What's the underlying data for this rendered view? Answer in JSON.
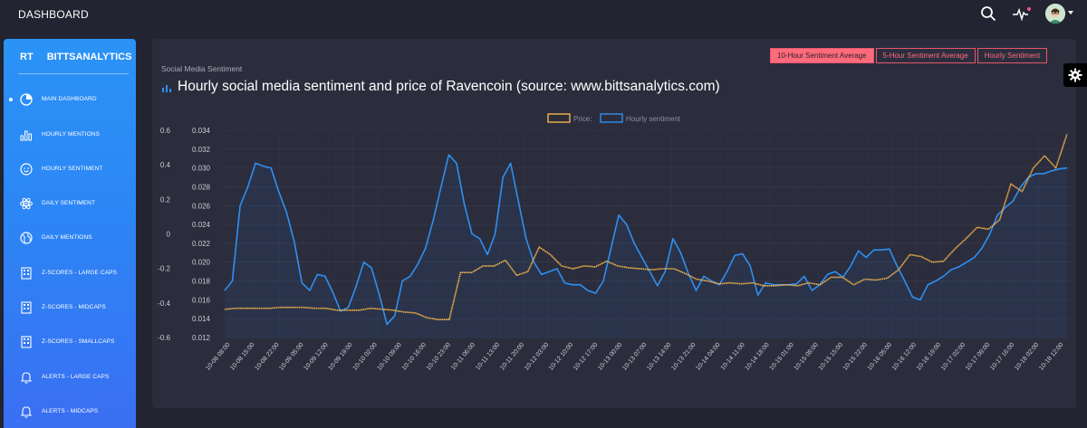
{
  "topbar": {
    "title": "DASHBOARD"
  },
  "sidebar": {
    "brand_short": "RT",
    "brand_name": "BITTSANALYTICS",
    "items": [
      {
        "label": "MAIN DASHBOARD",
        "icon": "pie-chart-icon",
        "active": true
      },
      {
        "label": "HOURLY MENTIONS",
        "icon": "bar-chart-icon"
      },
      {
        "label": "HOURLY SENTIMENT",
        "icon": "smiley-icon"
      },
      {
        "label": "DAILY SENTIMENT",
        "icon": "atom-icon"
      },
      {
        "label": "DAILY MENTIONS",
        "icon": "globe-icon"
      },
      {
        "label": "Z-SCORES - LARGE CAPS",
        "icon": "building-icon"
      },
      {
        "label": "Z-SCORES - MIDCAPS",
        "icon": "building-icon"
      },
      {
        "label": "Z-SCORES - SMALLCAPS",
        "icon": "building-icon"
      },
      {
        "label": "ALERTS - LARGE CAPS",
        "icon": "bell-icon"
      },
      {
        "label": "ALERTS - MIDCAPS",
        "icon": "bell-icon"
      }
    ]
  },
  "panel": {
    "subtitle": "Social Media Sentiment",
    "title": "Hourly social media sentiment and price of Ravencoin (source: www.bittsanalytics.com)",
    "tabs": [
      {
        "label": "10-Hour Sentiment Average",
        "active": true
      },
      {
        "label": "5-Hour Sentiment Average",
        "active": false
      },
      {
        "label": "Hourly Sentiment",
        "active": false
      }
    ]
  },
  "colors": {
    "price": "#f5b44a",
    "sentiment": "#2f8ff0",
    "accent": "#ff6b7d",
    "sidebar": "#2b8ff5"
  },
  "chart_data": {
    "type": "line",
    "legend": [
      "Price:",
      "Hourly sentiment"
    ],
    "legend_position": "top-center",
    "grid": true,
    "x_ticks": [
      "10-08 08:00",
      "10-08 15:00",
      "10-08 22:00",
      "10-09 05:00",
      "10-09 12:00",
      "10-09 19:00",
      "10-10 02:00",
      "10-10 09:00",
      "10-10 16:00",
      "10-10 23:00",
      "10-11 06:00",
      "10-11 13:00",
      "10-11 20:00",
      "10-12 03:00",
      "10-12 10:00",
      "10-12 17:00",
      "10-13 00:00",
      "10-13 07:00",
      "10-13 14:00",
      "10-13 21:00",
      "10-14 04:00",
      "10-14 11:00",
      "10-14 18:00",
      "10-15 01:00",
      "10-15 08:00",
      "10-15 15:00",
      "10-15 22:00",
      "10-16 05:00",
      "10-16 12:00",
      "10-16 19:00",
      "10-17 02:00",
      "10-17 09:00",
      "10-17 16:00",
      "10-18 02:00",
      "10-18 12:00"
    ],
    "y_left": {
      "ticks": [
        "0.6",
        "0.4",
        "0.2",
        "0",
        "-0.2",
        "-0.4",
        "-0.6"
      ],
      "range": [
        -0.6,
        0.6
      ]
    },
    "y_right": {
      "ticks": [
        "0.034",
        "0.032",
        "0.030",
        "0.028",
        "0.026",
        "0.024",
        "0.022",
        "0.020",
        "0.018",
        "0.016",
        "0.014",
        "0.012"
      ],
      "range": [
        0.012,
        0.034
      ]
    },
    "series": [
      {
        "name": "Price:",
        "axis": "right",
        "values": [
          0.015,
          0.0151,
          0.0151,
          0.0151,
          0.0151,
          0.0152,
          0.0152,
          0.0152,
          0.0151,
          0.0151,
          0.0149,
          0.0149,
          0.0149,
          0.0151,
          0.015,
          0.0149,
          0.0147,
          0.0146,
          0.0141,
          0.0139,
          0.0139,
          0.0189,
          0.0189,
          0.0196,
          0.0196,
          0.0202,
          0.0186,
          0.019,
          0.0216,
          0.0208,
          0.0196,
          0.0193,
          0.0196,
          0.0195,
          0.0201,
          0.0196,
          0.0194,
          0.0193,
          0.0192,
          0.0193,
          0.0193,
          0.0188,
          0.0182,
          0.018,
          0.0177,
          0.0178,
          0.0177,
          0.0178,
          0.0175,
          0.0175,
          0.0176,
          0.0175,
          0.0178,
          0.0176,
          0.0184,
          0.0184,
          0.0176,
          0.0182,
          0.0181,
          0.0183,
          0.0192,
          0.0208,
          0.0206,
          0.02,
          0.0201,
          0.0214,
          0.0225,
          0.0237,
          0.0235,
          0.0245,
          0.0283,
          0.0275,
          0.03,
          0.0313,
          0.03,
          0.0336
        ]
      },
      {
        "name": "Hourly sentiment",
        "axis": "right",
        "values": [
          0.017,
          0.018,
          0.026,
          0.028,
          0.0305,
          0.0302,
          0.03,
          0.0275,
          0.0253,
          0.0222,
          0.0178,
          0.017,
          0.0187,
          0.0185,
          0.0168,
          0.0148,
          0.0152,
          0.0174,
          0.02,
          0.0194,
          0.0166,
          0.0134,
          0.0143,
          0.018,
          0.0185,
          0.0198,
          0.0215,
          0.0245,
          0.028,
          0.0314,
          0.0305,
          0.0262,
          0.023,
          0.0225,
          0.0208,
          0.023,
          0.029,
          0.0305,
          0.0265,
          0.0225,
          0.02,
          0.0187,
          0.019,
          0.0193,
          0.0178,
          0.0176,
          0.0176,
          0.017,
          0.0167,
          0.018,
          0.0215,
          0.025,
          0.024,
          0.022,
          0.0205,
          0.019,
          0.0175,
          0.019,
          0.0225,
          0.021,
          0.0188,
          0.017,
          0.0185,
          0.018,
          0.0176,
          0.019,
          0.0207,
          0.0209,
          0.0196,
          0.0165,
          0.0178,
          0.0176,
          0.0176,
          0.0176,
          0.0177,
          0.0185,
          0.017,
          0.0176,
          0.0187,
          0.019,
          0.0184,
          0.0196,
          0.0212,
          0.0205,
          0.0213,
          0.0213,
          0.0214,
          0.0196,
          0.018,
          0.0163,
          0.016,
          0.0176,
          0.018,
          0.0185,
          0.0192,
          0.0195,
          0.02,
          0.0205,
          0.0215,
          0.023,
          0.025,
          0.0258,
          0.0265,
          0.028,
          0.029,
          0.0294,
          0.0294,
          0.0297,
          0.0299,
          0.03
        ]
      }
    ]
  }
}
